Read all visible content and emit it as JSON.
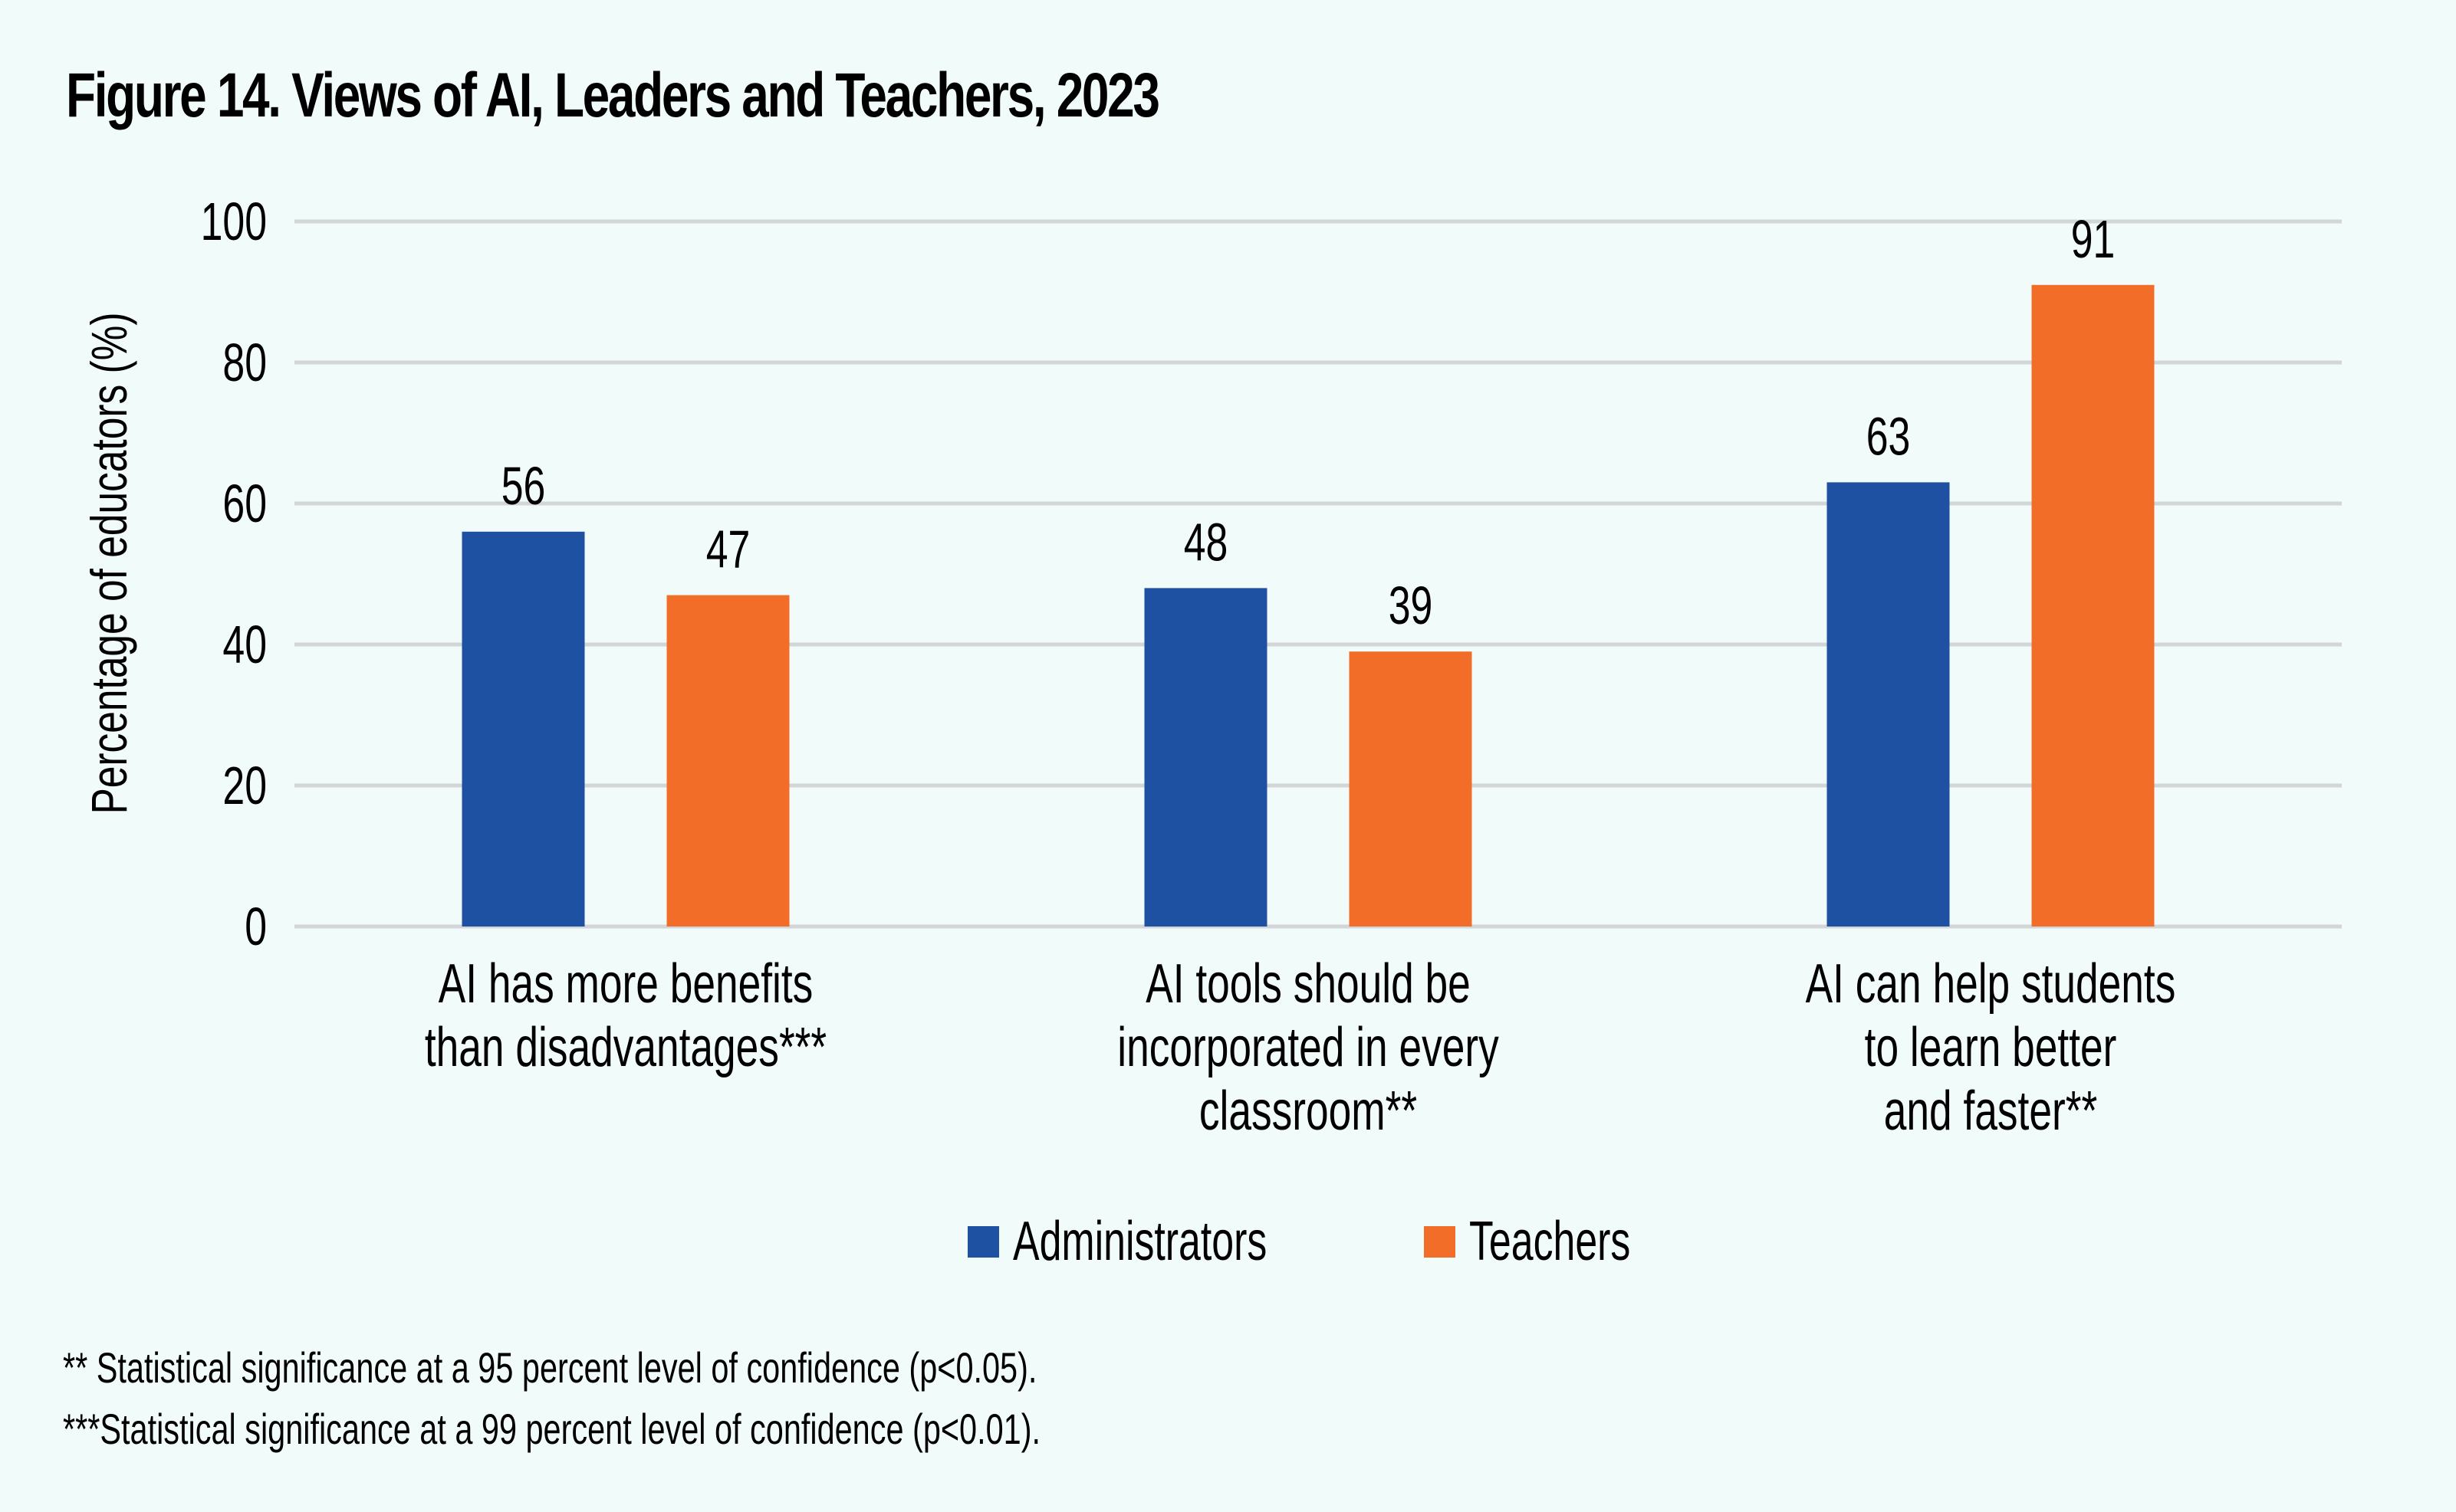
{
  "figure": {
    "title": "Figure 14. Views of AI, Leaders and Teachers, 2023"
  },
  "colors": {
    "background": "#F1FBFA",
    "administrators": "#1F51A2",
    "teachers": "#F26E28",
    "gridline": "#D3D6D8"
  },
  "chart_data": {
    "type": "bar",
    "title": "Figure 14. Views of AI, Leaders and Teachers, 2023",
    "xlabel": "",
    "ylabel": "Percentage of educators (%)",
    "ylim": [
      0,
      100
    ],
    "yticks": [
      0,
      20,
      40,
      60,
      80,
      100
    ],
    "grid": true,
    "legend_position": "bottom-center",
    "categories": [
      [
        "AI has more benefits",
        "than disadvantages***"
      ],
      [
        "AI tools should be",
        "incorporated in every",
        "classroom**"
      ],
      [
        "AI can help students",
        "to learn better",
        "and faster**"
      ]
    ],
    "series": [
      {
        "name": "Administrators",
        "color": "#1F51A2",
        "values": [
          56,
          48,
          63
        ]
      },
      {
        "name": "Teachers",
        "color": "#F26E28",
        "values": [
          47,
          39,
          91
        ]
      }
    ],
    "data_labels": true
  },
  "legend": {
    "items": [
      {
        "label": "Administrators",
        "color": "#1F51A2"
      },
      {
        "label": "Teachers",
        "color": "#F26E28"
      }
    ]
  },
  "footnotes": [
    "** Statistical significance at a 95 percent level of confidence (p<0.05).",
    "***Statistical significance at a 99 percent level of confidence (p<0.01)."
  ]
}
